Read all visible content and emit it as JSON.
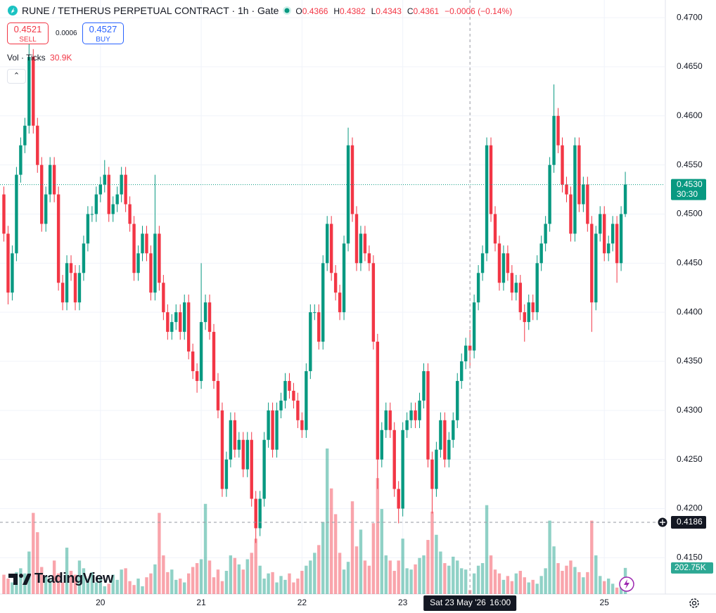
{
  "header": {
    "symbol_title": "RUNE / TETHERUS PERPETUAL CONTRACT · 1h · Gate",
    "ohlc": {
      "o_label": "O",
      "open": 0.4366,
      "h_label": "H",
      "high": 0.4382,
      "l_label": "L",
      "low": 0.4343,
      "c_label": "C",
      "close": 0.4361,
      "change": "−0.0006 (−0.14%)"
    },
    "sell": {
      "price": 0.4521,
      "label": "SELL"
    },
    "spread": 0.0006,
    "buy": {
      "price": 0.4527,
      "label": "BUY"
    },
    "volume_legend": {
      "label": "Vol · Ticks",
      "value": "30.9K"
    }
  },
  "chart_data": {
    "type": "candlestick",
    "open": [
      0.452,
      0.448,
      0.442,
      0.446,
      0.454,
      0.457,
      0.459,
      0.466,
      0.459,
      0.455,
      0.449,
      0.452,
      0.455,
      0.452,
      0.443,
      0.441,
      0.445,
      0.444,
      0.441,
      0.444,
      0.447,
      0.45,
      0.45,
      0.452,
      0.453,
      0.454,
      0.45,
      0.451,
      0.452,
      0.454,
      0.451,
      0.449,
      0.444,
      0.446,
      0.448,
      0.446,
      0.442,
      0.448,
      0.443,
      0.44,
      0.438,
      0.439,
      0.44,
      0.438,
      0.441,
      0.436,
      0.434,
      0.433,
      0.439,
      0.441,
      0.438,
      0.433,
      0.43,
      0.422,
      0.425,
      0.429,
      0.426,
      0.427,
      0.424,
      0.427,
      0.421,
      0.418,
      0.421,
      0.427,
      0.43,
      0.426,
      0.43,
      0.431,
      0.433,
      0.432,
      0.431,
      0.429,
      0.428,
      0.434,
      0.44,
      0.44,
      0.437,
      0.445,
      0.449,
      0.444,
      0.442,
      0.44,
      0.447,
      0.457,
      0.45,
      0.445,
      0.448,
      0.446,
      0.445,
      0.437,
      0.425,
      0.428,
      0.43,
      0.428,
      0.422,
      0.42,
      0.428,
      0.429,
      0.43,
      0.429,
      0.431,
      0.434,
      0.425,
      0.422,
      0.426,
      0.429,
      0.425,
      0.427,
      0.429,
      0.433,
      0.435,
      0.4366,
      0.4361,
      0.441,
      0.444,
      0.446,
      0.457,
      0.45,
      0.447,
      0.443,
      0.446,
      0.444,
      0.442,
      0.443,
      0.44,
      0.439,
      0.441,
      0.44,
      0.445,
      0.447,
      0.449,
      0.455,
      0.46,
      0.457,
      0.453,
      0.452,
      0.448,
      0.457,
      0.451,
      0.453,
      0.449,
      0.441,
      0.448,
      0.45,
      0.446,
      0.447,
      0.449,
      0.445,
      0.45
    ],
    "high": [
      0.4528,
      0.4488,
      0.4468,
      0.4548,
      0.4578,
      0.4598,
      0.468,
      0.4668,
      0.4598,
      0.4558,
      0.4528,
      0.4558,
      0.4558,
      0.4528,
      0.4438,
      0.4458,
      0.4458,
      0.4448,
      0.4448,
      0.4478,
      0.4508,
      0.4508,
      0.4528,
      0.4538,
      0.4555,
      0.4548,
      0.4518,
      0.4528,
      0.4548,
      0.4548,
      0.4518,
      0.4498,
      0.4468,
      0.4488,
      0.4488,
      0.4468,
      0.454,
      0.4488,
      0.4438,
      0.4408,
      0.4398,
      0.4408,
      0.4408,
      0.4418,
      0.4418,
      0.4368,
      0.4348,
      0.445,
      0.4418,
      0.4418,
      0.4388,
      0.4338,
      0.4308,
      0.4258,
      0.4298,
      0.4298,
      0.4278,
      0.4278,
      0.4278,
      0.4278,
      0.4218,
      0.4218,
      0.4278,
      0.4308,
      0.4308,
      0.4308,
      0.4318,
      0.4338,
      0.4338,
      0.4328,
      0.4318,
      0.4298,
      0.4348,
      0.4408,
      0.4408,
      0.4408,
      0.4458,
      0.4498,
      0.4498,
      0.4448,
      0.4428,
      0.4478,
      0.4588,
      0.4578,
      0.4508,
      0.4488,
      0.4488,
      0.4468,
      0.4458,
      0.4378,
      0.4288,
      0.4308,
      0.4308,
      0.4288,
      0.4228,
      0.4288,
      0.4298,
      0.4308,
      0.4308,
      0.4318,
      0.4348,
      0.4348,
      0.4258,
      0.4268,
      0.4298,
      0.4298,
      0.4278,
      0.4298,
      0.4338,
      0.4358,
      0.4374,
      0.4382,
      0.4418,
      0.4448,
      0.4468,
      0.4578,
      0.4578,
      0.4508,
      0.4478,
      0.4468,
      0.4468,
      0.4448,
      0.4438,
      0.4438,
      0.4408,
      0.4418,
      0.4418,
      0.4458,
      0.4478,
      0.4498,
      0.4558,
      0.4632,
      0.4608,
      0.4578,
      0.4538,
      0.4528,
      0.4578,
      0.4578,
      0.4538,
      0.4538,
      0.4498,
      0.4488,
      0.4508,
      0.4508,
      0.4478,
      0.4498,
      0.4498,
      0.4508,
      0.4543
    ],
    "low": [
      0.4472,
      0.4408,
      0.4412,
      0.4452,
      0.4532,
      0.4562,
      0.4582,
      0.4582,
      0.4542,
      0.4482,
      0.4482,
      0.4512,
      0.4512,
      0.4422,
      0.4402,
      0.4402,
      0.4432,
      0.4402,
      0.4402,
      0.4432,
      0.4462,
      0.4492,
      0.4492,
      0.4512,
      0.4522,
      0.4492,
      0.4492,
      0.4502,
      0.4512,
      0.4502,
      0.4482,
      0.4432,
      0.4432,
      0.4452,
      0.4452,
      0.4412,
      0.4412,
      0.4422,
      0.4392,
      0.4372,
      0.4372,
      0.4382,
      0.4372,
      0.4372,
      0.4352,
      0.4332,
      0.4318,
      0.4322,
      0.4382,
      0.4372,
      0.4322,
      0.4292,
      0.4212,
      0.4212,
      0.4242,
      0.4252,
      0.4252,
      0.4232,
      0.4232,
      0.4202,
      0.4165,
      0.4172,
      0.4202,
      0.4262,
      0.4252,
      0.4252,
      0.4292,
      0.4302,
      0.4312,
      0.4302,
      0.4282,
      0.4272,
      0.4272,
      0.4332,
      0.4392,
      0.4362,
      0.4362,
      0.4442,
      0.4432,
      0.4412,
      0.4392,
      0.4392,
      0.4462,
      0.4492,
      0.4442,
      0.4442,
      0.4452,
      0.4442,
      0.4362,
      0.422,
      0.4242,
      0.4272,
      0.4272,
      0.4212,
      0.4185,
      0.4192,
      0.4272,
      0.4282,
      0.4282,
      0.4282,
      0.4302,
      0.4242,
      0.4195,
      0.4212,
      0.4252,
      0.4242,
      0.4242,
      0.4262,
      0.4282,
      0.4322,
      0.4342,
      0.4343,
      0.4353,
      0.4402,
      0.4432,
      0.4452,
      0.4492,
      0.4462,
      0.4422,
      0.4422,
      0.4432,
      0.4412,
      0.4412,
      0.4392,
      0.437,
      0.4382,
      0.4392,
      0.4392,
      0.4442,
      0.4462,
      0.4482,
      0.4542,
      0.4562,
      0.4522,
      0.4512,
      0.4472,
      0.4472,
      0.4502,
      0.4502,
      0.4482,
      0.438,
      0.4402,
      0.4472,
      0.4452,
      0.4452,
      0.4462,
      0.443,
      0.4442,
      0.4497
    ],
    "close": [
      0.448,
      0.442,
      0.446,
      0.454,
      0.457,
      0.459,
      0.466,
      0.459,
      0.455,
      0.449,
      0.452,
      0.455,
      0.452,
      0.443,
      0.441,
      0.445,
      0.444,
      0.441,
      0.444,
      0.447,
      0.45,
      0.45,
      0.452,
      0.453,
      0.454,
      0.45,
      0.451,
      0.452,
      0.454,
      0.451,
      0.449,
      0.444,
      0.446,
      0.448,
      0.446,
      0.442,
      0.448,
      0.443,
      0.44,
      0.438,
      0.439,
      0.44,
      0.438,
      0.441,
      0.436,
      0.434,
      0.433,
      0.439,
      0.441,
      0.438,
      0.433,
      0.43,
      0.422,
      0.425,
      0.429,
      0.426,
      0.427,
      0.424,
      0.427,
      0.421,
      0.418,
      0.421,
      0.427,
      0.43,
      0.426,
      0.43,
      0.431,
      0.433,
      0.432,
      0.431,
      0.429,
      0.428,
      0.434,
      0.44,
      0.44,
      0.437,
      0.445,
      0.449,
      0.444,
      0.442,
      0.44,
      0.447,
      0.457,
      0.45,
      0.445,
      0.448,
      0.446,
      0.445,
      0.437,
      0.425,
      0.428,
      0.43,
      0.428,
      0.422,
      0.42,
      0.428,
      0.429,
      0.43,
      0.429,
      0.431,
      0.434,
      0.425,
      0.422,
      0.426,
      0.429,
      0.425,
      0.427,
      0.429,
      0.433,
      0.435,
      0.4366,
      0.4361,
      0.441,
      0.444,
      0.446,
      0.457,
      0.45,
      0.447,
      0.443,
      0.446,
      0.444,
      0.442,
      0.443,
      0.44,
      0.439,
      0.441,
      0.44,
      0.445,
      0.447,
      0.449,
      0.455,
      0.46,
      0.457,
      0.453,
      0.452,
      0.448,
      0.457,
      0.451,
      0.453,
      0.449,
      0.441,
      0.448,
      0.45,
      0.446,
      0.447,
      0.449,
      0.445,
      0.45,
      0.453
    ],
    "volume": [
      150000,
      120000,
      90000,
      170000,
      200000,
      160000,
      330000,
      630000,
      480000,
      210000,
      140000,
      110000,
      260000,
      160000,
      90000,
      360000,
      180000,
      150000,
      260000,
      200000,
      120000,
      170000,
      90000,
      130000,
      60000,
      80000,
      150000,
      110000,
      190000,
      200000,
      100000,
      70000,
      120000,
      60000,
      130000,
      160000,
      230000,
      630000,
      300000,
      170000,
      190000,
      110000,
      120000,
      90000,
      160000,
      210000,
      240000,
      270000,
      700000,
      260000,
      130000,
      190000,
      100000,
      180000,
      300000,
      280000,
      230000,
      190000,
      270000,
      320000,
      430000,
      220000,
      120000,
      160000,
      170000,
      90000,
      140000,
      110000,
      160000,
      90000,
      120000,
      180000,
      220000,
      260000,
      320000,
      380000,
      560000,
      1130000,
      820000,
      620000,
      320000,
      190000,
      250000,
      720000,
      370000,
      500000,
      260000,
      220000,
      550000,
      900000,
      660000,
      300000,
      260000,
      180000,
      260000,
      430000,
      200000,
      190000,
      230000,
      280000,
      300000,
      420000,
      640000,
      460000,
      330000,
      240000,
      220000,
      290000,
      260000,
      200000,
      190000,
      30900,
      160000,
      220000,
      240000,
      690000,
      300000,
      190000,
      160000,
      110000,
      140000,
      100000,
      160000,
      180000,
      130000,
      90000,
      110000,
      80000,
      140000,
      200000,
      570000,
      370000,
      240000,
      180000,
      220000,
      260000,
      210000,
      170000,
      130000,
      170000,
      570000,
      300000,
      140000,
      100000,
      120000,
      80000,
      50000,
      90000,
      202750
    ],
    "up_color": "#089981",
    "down_color": "#f23645",
    "ylim": [
      0.4113,
      0.4718
    ],
    "yticks": [
      {
        "value": 0.415,
        "label": "0.4150"
      },
      {
        "value": 0.42,
        "label": "0.4200"
      },
      {
        "value": 0.425,
        "label": "0.4250"
      },
      {
        "value": 0.43,
        "label": "0.4300"
      },
      {
        "value": 0.435,
        "label": "0.4350"
      },
      {
        "value": 0.44,
        "label": "0.4400"
      },
      {
        "value": 0.445,
        "label": "0.4450"
      },
      {
        "value": 0.45,
        "label": "0.4500"
      },
      {
        "value": 0.455,
        "label": "0.4550"
      },
      {
        "value": 0.46,
        "label": "0.4600"
      },
      {
        "value": 0.465,
        "label": "0.4650"
      },
      {
        "value": 0.47,
        "label": "0.4700"
      }
    ],
    "xticks": [
      {
        "value": 23,
        "label": "20"
      },
      {
        "value": 47,
        "label": "21"
      },
      {
        "value": 71,
        "label": "22"
      },
      {
        "value": 95,
        "label": "23"
      },
      {
        "value": 143,
        "label": "25"
      }
    ],
    "grid": true,
    "last_price": {
      "label": "0.4530",
      "countdown": "30:30"
    },
    "crosshair": {
      "x": 111,
      "y": {
        "value": 0.4186,
        "label": "0.4186"
      },
      "time_label": "Sat 23 May '26",
      "time": "16:00"
    },
    "volume_label": "202.75K"
  },
  "branding": "TradingView"
}
